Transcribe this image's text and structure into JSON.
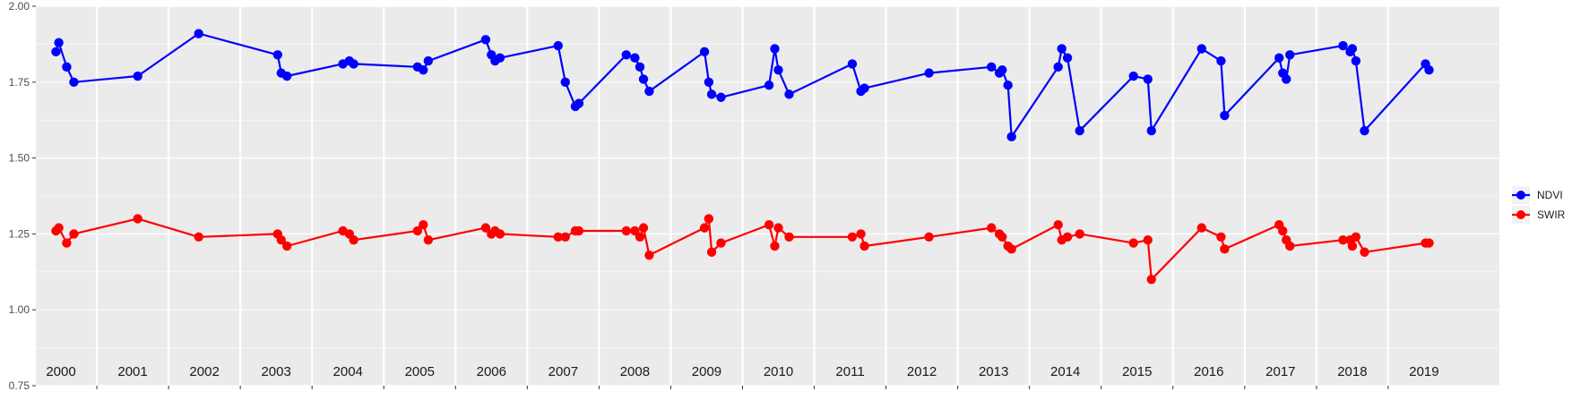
{
  "chart_data": {
    "type": "line",
    "title": "",
    "xlabel": "",
    "ylabel": "",
    "ylim": [
      0.75,
      2.0
    ],
    "y_ticks": [
      "0.75",
      "1.00",
      "1.25",
      "1.50",
      "1.75",
      "2.00"
    ],
    "x_range": [
      1999.65,
      2020.05
    ],
    "year_labels": [
      "2000",
      "2001",
      "2002",
      "2003",
      "2004",
      "2005",
      "2006",
      "2007",
      "2008",
      "2009",
      "2010",
      "2011",
      "2012",
      "2013",
      "2014",
      "2015",
      "2016",
      "2017",
      "2018",
      "2019"
    ],
    "year_positions": [
      2000.0,
      2001.0,
      2002.0,
      2003.0,
      2004.0,
      2005.0,
      2006.0,
      2007.0,
      2008.0,
      2009.0,
      2010.0,
      2011.0,
      2012.0,
      2013.0,
      2014.0,
      2015.0,
      2016.0,
      2017.0,
      2018.0,
      2019.0
    ],
    "grid": true,
    "legend_position": "right",
    "series": [
      {
        "name": "NDVI",
        "color": "#0000ff",
        "points": [
          [
            1999.93,
            1.85
          ],
          [
            1999.97,
            1.88
          ],
          [
            2000.08,
            1.8
          ],
          [
            2000.18,
            1.75
          ],
          [
            2001.07,
            1.77
          ],
          [
            2001.92,
            1.91
          ],
          [
            2003.02,
            1.84
          ],
          [
            2003.07,
            1.78
          ],
          [
            2003.15,
            1.77
          ],
          [
            2003.93,
            1.81
          ],
          [
            2004.02,
            1.82
          ],
          [
            2004.08,
            1.81
          ],
          [
            2004.97,
            1.8
          ],
          [
            2005.05,
            1.79
          ],
          [
            2005.12,
            1.82
          ],
          [
            2005.92,
            1.89
          ],
          [
            2006.0,
            1.84
          ],
          [
            2006.05,
            1.82
          ],
          [
            2006.12,
            1.83
          ],
          [
            2006.93,
            1.87
          ],
          [
            2007.03,
            1.75
          ],
          [
            2007.17,
            1.67
          ],
          [
            2007.22,
            1.68
          ],
          [
            2007.88,
            1.84
          ],
          [
            2008.0,
            1.83
          ],
          [
            2008.07,
            1.8
          ],
          [
            2008.12,
            1.76
          ],
          [
            2008.2,
            1.72
          ],
          [
            2008.97,
            1.85
          ],
          [
            2009.03,
            1.75
          ],
          [
            2009.07,
            1.71
          ],
          [
            2009.2,
            1.7
          ],
          [
            2009.87,
            1.74
          ],
          [
            2009.95,
            1.86
          ],
          [
            2010.0,
            1.79
          ],
          [
            2010.15,
            1.71
          ],
          [
            2011.03,
            1.81
          ],
          [
            2011.15,
            1.72
          ],
          [
            2011.2,
            1.73
          ],
          [
            2012.1,
            1.78
          ],
          [
            2012.97,
            1.8
          ],
          [
            2013.08,
            1.78
          ],
          [
            2013.12,
            1.79
          ],
          [
            2013.2,
            1.74
          ],
          [
            2013.25,
            1.57
          ],
          [
            2013.9,
            1.8
          ],
          [
            2013.95,
            1.86
          ],
          [
            2014.03,
            1.83
          ],
          [
            2014.2,
            1.59
          ],
          [
            2014.95,
            1.77
          ],
          [
            2015.15,
            1.76
          ],
          [
            2015.2,
            1.59
          ],
          [
            2015.9,
            1.86
          ],
          [
            2016.17,
            1.82
          ],
          [
            2016.22,
            1.64
          ],
          [
            2016.98,
            1.83
          ],
          [
            2017.03,
            1.78
          ],
          [
            2017.08,
            1.76
          ],
          [
            2017.13,
            1.84
          ],
          [
            2017.87,
            1.87
          ],
          [
            2017.97,
            1.85
          ],
          [
            2018.0,
            1.86
          ],
          [
            2018.05,
            1.82
          ],
          [
            2018.17,
            1.59
          ],
          [
            2019.02,
            1.81
          ],
          [
            2019.07,
            1.79
          ]
        ]
      },
      {
        "name": "SWIR",
        "color": "#ff0000",
        "points": [
          [
            1999.93,
            1.26
          ],
          [
            1999.97,
            1.27
          ],
          [
            2000.08,
            1.22
          ],
          [
            2000.18,
            1.25
          ],
          [
            2001.07,
            1.3
          ],
          [
            2001.92,
            1.24
          ],
          [
            2003.02,
            1.25
          ],
          [
            2003.07,
            1.23
          ],
          [
            2003.15,
            1.21
          ],
          [
            2003.93,
            1.26
          ],
          [
            2004.02,
            1.25
          ],
          [
            2004.08,
            1.23
          ],
          [
            2004.97,
            1.26
          ],
          [
            2005.05,
            1.28
          ],
          [
            2005.12,
            1.23
          ],
          [
            2005.92,
            1.27
          ],
          [
            2006.0,
            1.25
          ],
          [
            2006.05,
            1.26
          ],
          [
            2006.12,
            1.25
          ],
          [
            2006.93,
            1.24
          ],
          [
            2007.03,
            1.24
          ],
          [
            2007.17,
            1.26
          ],
          [
            2007.22,
            1.26
          ],
          [
            2007.88,
            1.26
          ],
          [
            2008.0,
            1.26
          ],
          [
            2008.07,
            1.24
          ],
          [
            2008.12,
            1.27
          ],
          [
            2008.2,
            1.18
          ],
          [
            2008.97,
            1.27
          ],
          [
            2009.03,
            1.3
          ],
          [
            2009.07,
            1.19
          ],
          [
            2009.2,
            1.22
          ],
          [
            2009.87,
            1.28
          ],
          [
            2009.95,
            1.21
          ],
          [
            2010.0,
            1.27
          ],
          [
            2010.15,
            1.24
          ],
          [
            2011.03,
            1.24
          ],
          [
            2011.15,
            1.25
          ],
          [
            2011.2,
            1.21
          ],
          [
            2012.1,
            1.24
          ],
          [
            2012.97,
            1.27
          ],
          [
            2013.08,
            1.25
          ],
          [
            2013.12,
            1.24
          ],
          [
            2013.2,
            1.21
          ],
          [
            2013.25,
            1.2
          ],
          [
            2013.9,
            1.28
          ],
          [
            2013.95,
            1.23
          ],
          [
            2014.03,
            1.24
          ],
          [
            2014.2,
            1.25
          ],
          [
            2014.95,
            1.22
          ],
          [
            2015.15,
            1.23
          ],
          [
            2015.2,
            1.1
          ],
          [
            2015.9,
            1.27
          ],
          [
            2016.17,
            1.24
          ],
          [
            2016.22,
            1.2
          ],
          [
            2016.98,
            1.28
          ],
          [
            2017.03,
            1.26
          ],
          [
            2017.08,
            1.23
          ],
          [
            2017.13,
            1.21
          ],
          [
            2017.87,
            1.23
          ],
          [
            2017.97,
            1.23
          ],
          [
            2018.0,
            1.21
          ],
          [
            2018.05,
            1.24
          ],
          [
            2018.17,
            1.19
          ],
          [
            2019.02,
            1.22
          ],
          [
            2019.07,
            1.22
          ]
        ]
      }
    ]
  }
}
